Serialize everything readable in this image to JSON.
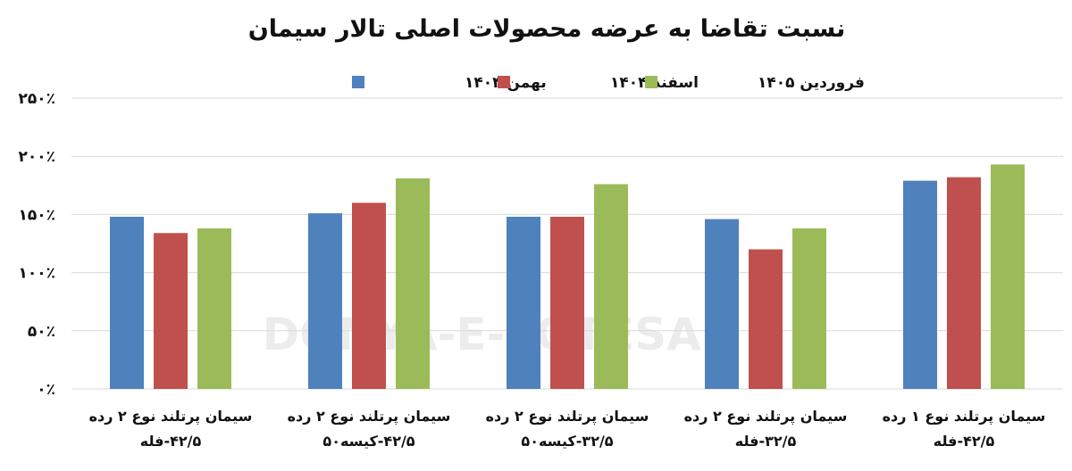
{
  "chart_data": {
    "type": "bar",
    "title": "نسبت تقاضا به عرضه محصولات اصلی تالار سیمان",
    "categories": [
      [
        "سیمان پرتلند نوع ۲ رده",
        "۴۲/۵-فله"
      ],
      [
        "سیمان پرتلند نوع ۲ رده",
        "۴۲/۵-کیسه۵۰"
      ],
      [
        "سیمان پرتلند نوع ۲ رده",
        "۳۲/۵-کیسه۵۰"
      ],
      [
        "سیمان پرتلند نوع ۲ رده",
        "۳۲/۵-فله"
      ],
      [
        "سیمان پرتلند نوع ۱ رده",
        "۴۲/۵-فله"
      ]
    ],
    "series": [
      {
        "name": "بهمن ۱۴۰۴",
        "color": "#4f81bd",
        "values": [
          148,
          151,
          148,
          146,
          179
        ]
      },
      {
        "name": "اسفند ۱۴۰۴",
        "color": "#c0504d",
        "values": [
          134,
          160,
          148,
          120,
          182
        ]
      },
      {
        "name": "فروردین ۱۴۰۵",
        "color": "#9bbb59",
        "values": [
          138,
          181,
          176,
          138,
          193
        ]
      }
    ],
    "ylim": [
      0,
      250
    ],
    "ytick_values": [
      0,
      50,
      100,
      150,
      200,
      250
    ],
    "ytick_labels": [
      "۰٪",
      "۵۰٪",
      "۱۰۰٪",
      "۱۵۰٪",
      "۲۰۰٪",
      "۲۵۰٪"
    ],
    "grid": true,
    "legend_position": "top-center",
    "watermark": "DONYA-E-EQTESAD"
  }
}
